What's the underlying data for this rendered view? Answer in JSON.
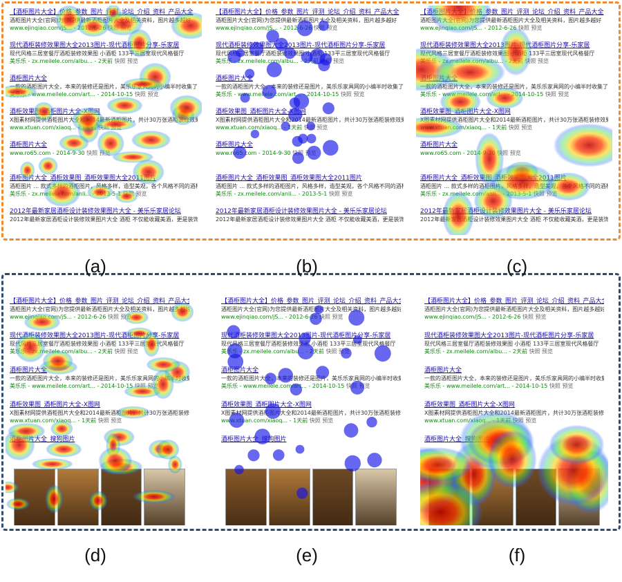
{
  "colors": {
    "frame_top": "#ef8a2e",
    "frame_bottom": "#2e4b73",
    "link": "#1a0dab",
    "highlight": "#cc0000",
    "url": "#0a8a0a",
    "fixation": "#1515e8"
  },
  "panels": [
    {
      "id": "a",
      "label": "(a)",
      "variant": "text",
      "overlay": "heatmap"
    },
    {
      "id": "b",
      "label": "(b)",
      "variant": "text",
      "overlay": "fixations"
    },
    {
      "id": "c",
      "label": "(c)",
      "variant": "text",
      "overlay": "heatmap"
    },
    {
      "id": "d",
      "label": "(d)",
      "variant": "image",
      "overlay": "heatmap"
    },
    {
      "id": "e",
      "label": "(e)",
      "variant": "image",
      "overlay": "fixations"
    },
    {
      "id": "f",
      "label": "(f)",
      "variant": "image",
      "overlay": "heatmap"
    }
  ],
  "serp_text": [
    {
      "title": "【酒柜图片大全】价格_参数_图片_评测_论坛_介绍_资料_产品大全",
      "snippet": "酒柜图片大全(官网)为您提供最新酒柜图片大全及相关资料，图片越多越好",
      "url": "www.ejinqiao.com/jS... - 2012-6-26",
      "tail": "快照  预览"
    },
    {
      "title": "现代酒柜装修效果图大全2013图片-现代酒柜图片分享-乐家居",
      "snippet": "现代风格三居室餐厅酒柜装修效果图 小酒柜 133平三居室现代风格餐厅",
      "url": "美乐乐 - zx.meilele.com/albu... - 2天前",
      "tail": "快照  预览"
    },
    {
      "title": "酒柜图片大全",
      "snippet": "一款的酒柜图片大全，本来的装修还是图片，美乐乐家具网的小编半时收集了一些酒柜图片",
      "url": "美乐乐 - www.meilele.com/art... - 2014-10-15",
      "tail": "快照  预览"
    },
    {
      "title": "酒柜效果图_酒柜图片大全-X图网",
      "snippet": "X图素材网提供酒柜图片大全和2014最新酒柜图片，共计30万张酒柜装修效果图片",
      "url": "www.xtuan.com/xiaoq... - 1天前",
      "tail": "快照  预览"
    },
    {
      "title": "酒柜图片大全",
      "snippet": "",
      "url": "www.ro65.com - 2014-9-30",
      "tail": "快照  预览"
    },
    {
      "title": "酒柜图片大全_酒柜效果图_酒柜效果图大全2011图片",
      "snippet": "酒柜图片 ... 款式多样的酒柜图片，风格多样，造型美观，各个风格不同的酒柜图片",
      "url": "美乐乐 - zx.meilele.com/anli... - 2013-5-1",
      "tail": "快照  预览"
    },
    {
      "title": "2012年最新家居酒柜设计装修效果图片大全 - 美乐乐家居论坛",
      "snippet": "2012年最新家居酒柜设计装修效果图片大全 酒柜 不仅能收藏美酒，更是装饰",
      "url": "",
      "tail": ""
    }
  ],
  "serp_image": [
    {
      "title": "【酒柜图片大全】价格_参数_图片_评测_论坛_介绍_资料_产品大全",
      "snippet": "酒柜图片大全(官网)为您提供最新酒柜图片大全及相关资料，图片越多越好",
      "url": "www.ejinqiao.com/jS... - 2012-6-26",
      "tail": "快照  预览"
    },
    {
      "title": "现代酒柜装修效果图大全2013图片-现代酒柜图片分享-乐家居",
      "snippet": "现代风格三居室餐厅酒柜装修效果图 小酒柜 133平三居室现代风格餐厅",
      "url": "美乐乐 - zx.meilele.com/albu... - 2天前",
      "tail": "快照  预览"
    },
    {
      "title": "酒柜图片大全",
      "snippet": "一款的酒柜图片大全，本来的装修还是图片，美乐乐家具网的小编半时收集了一些酒柜图片",
      "url": "美乐乐 - www.meilele.com/art... - 2014-10-15",
      "tail": "快照  预览"
    },
    {
      "title": "酒柜效果图_酒柜图片大全-X图网",
      "snippet": "X图素材网提供酒柜图片大全和2014最新酒柜图片，共计30万张酒柜装修效果图片",
      "url": "www.xtuan.com/xiaoq... - 1天前",
      "tail": "快照  预览"
    },
    {
      "title": "酒柜图片大全_搜狗图片",
      "snippet": "",
      "url": "",
      "tail": ""
    }
  ]
}
